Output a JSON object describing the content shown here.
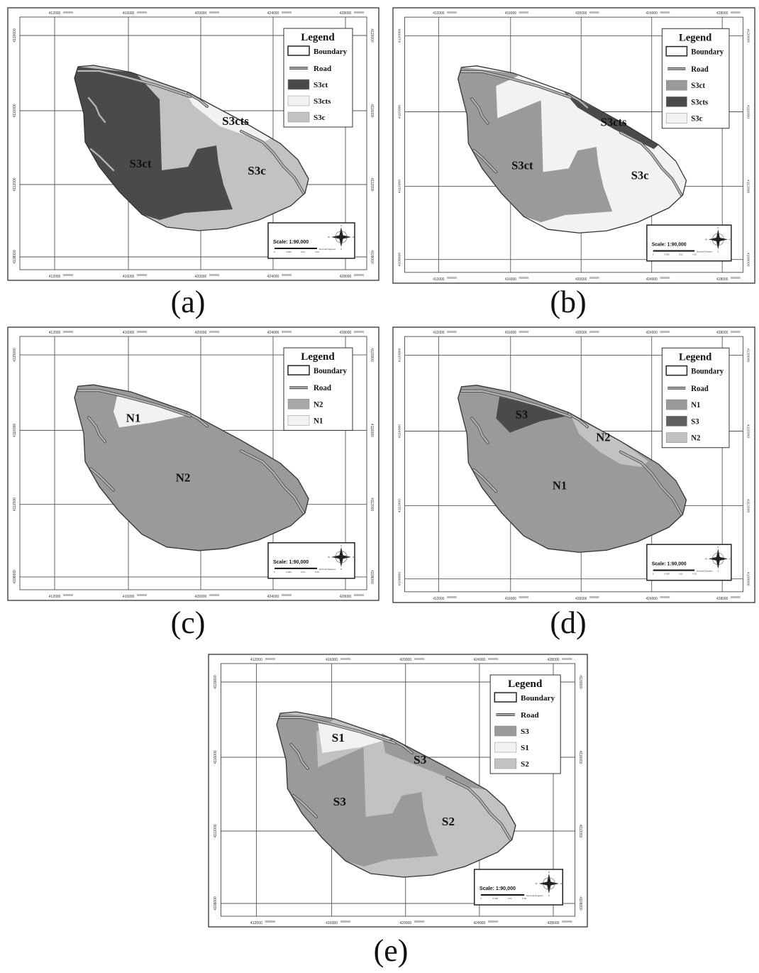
{
  "figure": {
    "captions": [
      "(a)",
      "(b)",
      "(c)",
      "(d)",
      "(e)"
    ]
  },
  "axes": {
    "x_ticks": [
      "412000",
      "416000",
      "420000",
      "424000",
      "428000"
    ],
    "y_ticks": [
      "4120000",
      "4116000",
      "4112000",
      "4108000"
    ]
  },
  "common": {
    "legend_title": "Legend",
    "boundary_label": "Boundary",
    "road_label": "Road",
    "scale_text": "Scale: 1:90,000",
    "scale_units": [
      "0",
      "0.000",
      "0.01",
      "0.02"
    ],
    "scale_note": "Decimal Degrees",
    "compass_letters": [
      "N",
      "S",
      "E",
      "W"
    ]
  },
  "colors": {
    "dark": "#4a4a4a",
    "medium": "#9a9a9a",
    "light": "#c2c2c2",
    "verylight": "#f2f2f2"
  },
  "maps": [
    {
      "id": "a",
      "legend": [
        {
          "label": "S3ct",
          "color": "#4a4a4a"
        },
        {
          "label": "S3cts",
          "color": "#f2f2f2"
        },
        {
          "label": "S3c",
          "color": "#c2c2c2"
        }
      ],
      "labels": [
        "S3ct",
        "S3cts",
        "S3c"
      ]
    },
    {
      "id": "b",
      "legend": [
        {
          "label": "S3ct",
          "color": "#9a9a9a"
        },
        {
          "label": "S3cts",
          "color": "#4a4a4a"
        },
        {
          "label": "S3c",
          "color": "#f2f2f2"
        }
      ],
      "labels": [
        "S3ct",
        "S3cts",
        "S3c"
      ]
    },
    {
      "id": "c",
      "legend": [
        {
          "label": "N2",
          "color": "#a8a8a8"
        },
        {
          "label": "N1",
          "color": "#f2f2f2"
        }
      ],
      "labels": [
        "N1",
        "N2"
      ]
    },
    {
      "id": "d",
      "legend": [
        {
          "label": "N1",
          "color": "#9a9a9a"
        },
        {
          "label": "S3",
          "color": "#5e5e5e"
        },
        {
          "label": "N2",
          "color": "#c2c2c2"
        }
      ],
      "labels": [
        "S3",
        "N2",
        "N1"
      ]
    },
    {
      "id": "e",
      "legend": [
        {
          "label": "S3",
          "color": "#9a9a9a"
        },
        {
          "label": "S1",
          "color": "#f2f2f2"
        },
        {
          "label": "S2",
          "color": "#c2c2c2"
        }
      ],
      "labels": [
        "S1",
        "S3",
        "S3",
        "S2"
      ]
    }
  ]
}
